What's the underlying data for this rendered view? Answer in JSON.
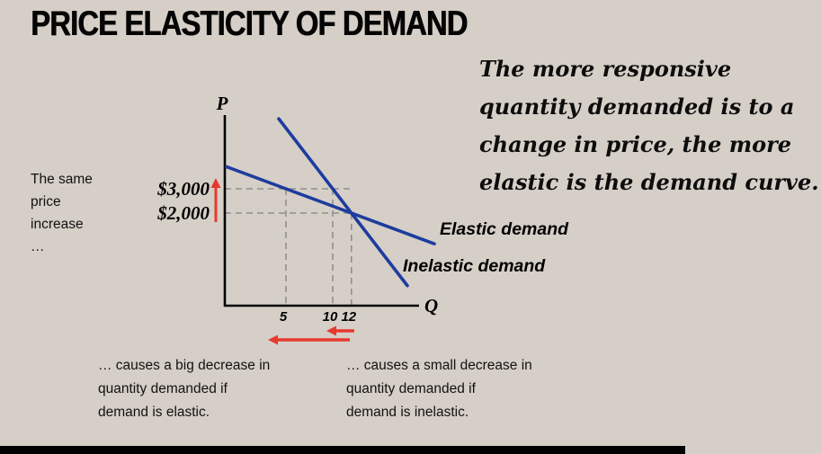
{
  "title": "PRICE ELASTICITY OF DEMAND",
  "right_note": {
    "lines": [
      "The more responsive",
      "quantity demanded is to a",
      "change in price, the more",
      "elastic is the demand curve."
    ]
  },
  "left_note": {
    "lines": [
      "The same",
      "price",
      "increase",
      "…"
    ]
  },
  "captions": {
    "elastic": {
      "lines": [
        "… causes a big decrease in",
        "quantity demanded if",
        "demand is elastic."
      ]
    },
    "inelastic": {
      "lines": [
        "… causes a small decrease in",
        "quantity demanded if",
        "demand is inelastic."
      ]
    }
  },
  "chart_data": {
    "type": "line",
    "title": "PRICE ELASTICITY OF DEMAND",
    "xlabel": "Q",
    "ylabel": "P",
    "x_ticks": [
      5,
      10,
      12
    ],
    "y_ticks": [
      {
        "label": "$3,000",
        "value": 3000
      },
      {
        "label": "$2,000",
        "value": 2000
      }
    ],
    "series": [
      {
        "name": "Elastic demand",
        "points": [
          [
            5,
            3000
          ],
          [
            12,
            2000
          ]
        ]
      },
      {
        "name": "Inelastic demand",
        "points": [
          [
            10,
            3000
          ],
          [
            12,
            2000
          ]
        ]
      }
    ],
    "guide_points": [
      {
        "q": 5,
        "p_top": 3000
      },
      {
        "q": 10,
        "p_top": 3000
      },
      {
        "q": 12,
        "p_top": 2000
      }
    ],
    "arrows": [
      {
        "name": "price-increase-arrow",
        "direction": "up"
      },
      {
        "name": "big-decrease-arrow",
        "direction": "left"
      },
      {
        "name": "small-decrease-arrow",
        "direction": "left"
      }
    ],
    "grid": "dashed-guides-only",
    "legend_position": "right-of-lines"
  },
  "colors": {
    "background": "#d6cfc7",
    "line_blue": "#1e3c9e",
    "arrow_red": "#e8392e",
    "dashed_gray": "#8f8f8f",
    "bottom_bar": "#000000"
  }
}
